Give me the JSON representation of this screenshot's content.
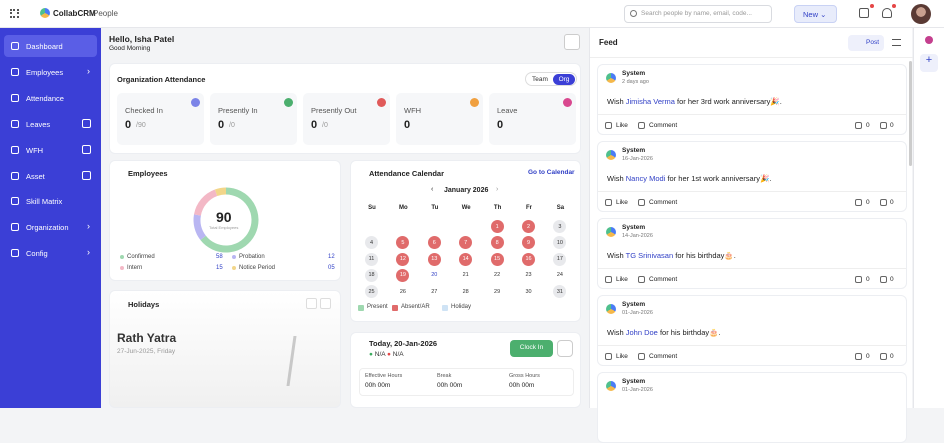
{
  "header": {
    "brand": "CollabCRM",
    "section": "People",
    "search_placeholder": "Search people by name, email, code...",
    "new_button": "New"
  },
  "sidebar": {
    "items": [
      "Dashboard",
      "Employees",
      "Attendance",
      "Leaves",
      "WFH",
      "Asset",
      "Skill Matrix",
      "Organization",
      "Config"
    ]
  },
  "greeting": {
    "title": "Hello, Isha Patel",
    "subtitle": "Good Morning"
  },
  "attendance": {
    "title": "Organization Attendance",
    "toggle": [
      "Team",
      "Org"
    ],
    "cards": [
      {
        "label": "Checked In",
        "value": "0",
        "total": "/90"
      },
      {
        "label": "Presently In",
        "value": "0",
        "total": "/0"
      },
      {
        "label": "Presently Out",
        "value": "0",
        "total": "/0"
      },
      {
        "label": "WFH",
        "value": "0"
      },
      {
        "label": "Leave",
        "value": "0"
      }
    ]
  },
  "employees": {
    "title": "Employees",
    "total": "90",
    "total_label": "Total Employees",
    "legend": [
      {
        "label": "Confirmed",
        "count": "58",
        "color": "#9fd8b0"
      },
      {
        "label": "Probation",
        "count": "12",
        "color": "#b9b6f2"
      },
      {
        "label": "Intern",
        "count": "15",
        "color": "#f3b8c6"
      },
      {
        "label": "Notice Period",
        "count": "05",
        "color": "#f2d68a"
      }
    ]
  },
  "holidays": {
    "title": "Holidays",
    "name": "Rath Yatra",
    "date": "27-Jun-2025, Friday"
  },
  "calendar": {
    "title": "Attendance Calendar",
    "link": "Go to Calendar",
    "month": "January 2026",
    "weekdays": [
      "Su",
      "Mo",
      "Tu",
      "We",
      "Th",
      "Fr",
      "Sa"
    ],
    "start_offset": 4,
    "days": [
      {
        "d": 1,
        "s": "absent"
      },
      {
        "d": 2,
        "s": "absent"
      },
      {
        "d": 3,
        "s": "none"
      },
      {
        "d": 4,
        "s": "none"
      },
      {
        "d": 5,
        "s": "absent"
      },
      {
        "d": 6,
        "s": "absent"
      },
      {
        "d": 7,
        "s": "absent"
      },
      {
        "d": 8,
        "s": "absent"
      },
      {
        "d": 9,
        "s": "absent"
      },
      {
        "d": 10,
        "s": "none"
      },
      {
        "d": 11,
        "s": "none"
      },
      {
        "d": 12,
        "s": "absent"
      },
      {
        "d": 13,
        "s": "absent"
      },
      {
        "d": 14,
        "s": "absent"
      },
      {
        "d": 15,
        "s": "absent"
      },
      {
        "d": 16,
        "s": "absent"
      },
      {
        "d": 17,
        "s": "none"
      },
      {
        "d": 18,
        "s": "none"
      },
      {
        "d": 19,
        "s": "absent"
      },
      {
        "d": 20,
        "s": "today"
      },
      {
        "d": 21,
        "s": "future"
      },
      {
        "d": 22,
        "s": "future"
      },
      {
        "d": 23,
        "s": "future"
      },
      {
        "d": 24,
        "s": "future"
      },
      {
        "d": 25,
        "s": "none"
      },
      {
        "d": 26,
        "s": "future"
      },
      {
        "d": 27,
        "s": "future"
      },
      {
        "d": 28,
        "s": "future"
      },
      {
        "d": 29,
        "s": "future"
      },
      {
        "d": 30,
        "s": "future"
      },
      {
        "d": 31,
        "s": "none"
      }
    ],
    "legend": [
      "Present",
      "Absent/AR",
      "Holiday"
    ]
  },
  "today": {
    "title": "Today, 20-Jan-2026",
    "in_status": "N/A",
    "out_status": "N/A",
    "button": "Clock In",
    "stats": [
      {
        "label": "Effective Hours",
        "value": "00h 00m"
      },
      {
        "label": "Break",
        "value": "00h 00m"
      },
      {
        "label": "Gross Hours",
        "value": "00h 00m"
      }
    ]
  },
  "feed": {
    "title": "Feed",
    "post_button": "Post",
    "like": "Like",
    "comment": "Comment",
    "posts": [
      {
        "author": "System",
        "time": "2 days ago",
        "pre": "Wish ",
        "name": "Jimisha Verma",
        "post": " for her 3rd work anniversary🎉.",
        "likes": 0,
        "comments": 0
      },
      {
        "author": "System",
        "time": "16-Jan-2026",
        "pre": "Wish ",
        "name": "Nancy Modi",
        "post": " for her 1st work anniversary🎉.",
        "likes": 0,
        "comments": 0
      },
      {
        "author": "System",
        "time": "14-Jan-2026",
        "pre": "Wish ",
        "name": "TG Srinivasan",
        "post": " for his birthday🎂.",
        "likes": 0,
        "comments": 0
      },
      {
        "author": "System",
        "time": "01-Jan-2026",
        "pre": "Wish ",
        "name": "John Doe",
        "post": " for his birthday🎂.",
        "likes": 0,
        "comments": 0
      },
      {
        "author": "System",
        "time": "01-Jan-2026"
      }
    ]
  }
}
